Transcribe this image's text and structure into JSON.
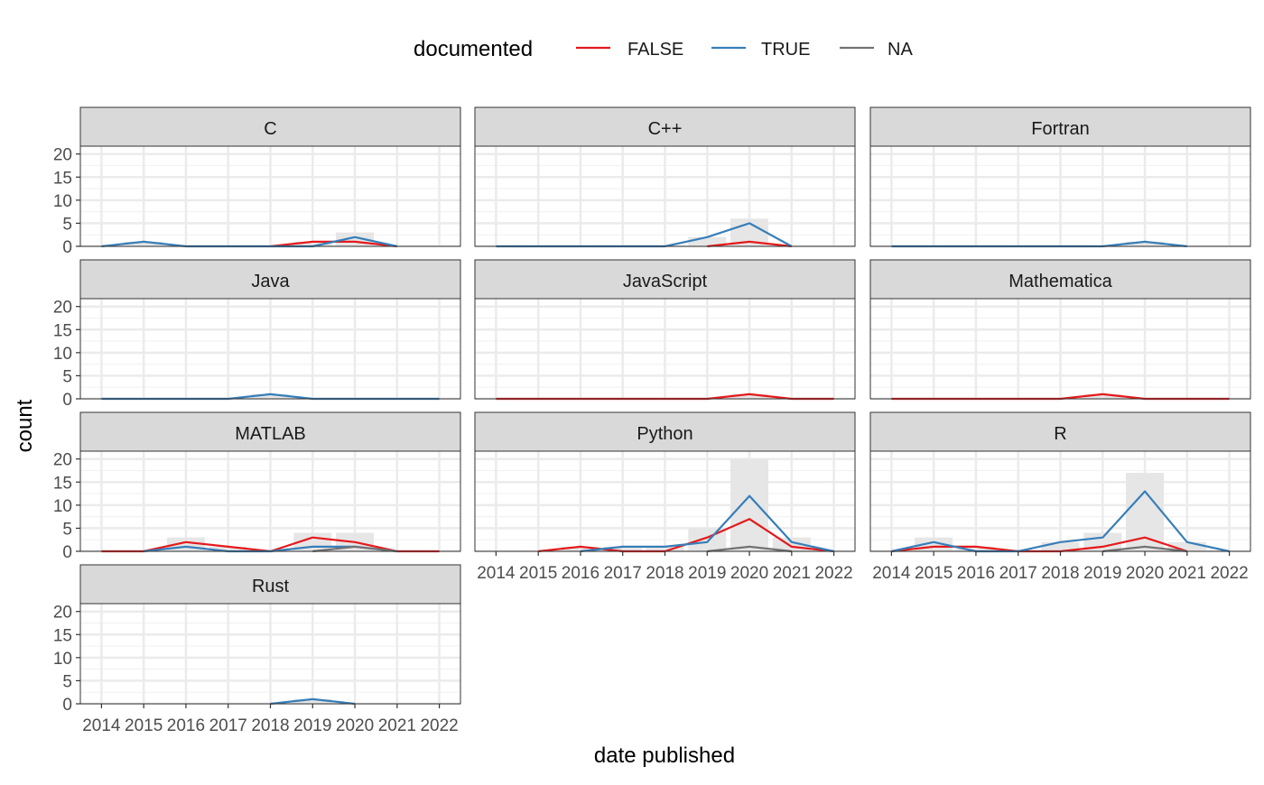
{
  "chart_data": {
    "type": "line",
    "xlabel": "date published",
    "ylabel": "count",
    "ylim": [
      0,
      20
    ],
    "yticks": [
      0,
      5,
      10,
      15,
      20
    ],
    "x": [
      2014,
      2015,
      2016,
      2017,
      2018,
      2019,
      2020,
      2021,
      2022
    ],
    "xtick_labels": [
      "2014",
      "2015",
      "2016",
      "2017",
      "2018",
      "2019",
      "2020",
      "2021",
      "2022"
    ],
    "grid": true,
    "legend": {
      "title": "documented",
      "position": "top",
      "entries": [
        {
          "label": "FALSE",
          "color": "#e41a1c"
        },
        {
          "label": "TRUE",
          "color": "#377eb8"
        },
        {
          "label": "NA",
          "color": "#737373"
        }
      ]
    },
    "background_bar_color": "#e6e6e6",
    "panels": [
      {
        "name": "C",
        "totals": {
          "x": [
            2015,
            2019,
            2020
          ],
          "values": [
            1,
            1,
            3
          ]
        },
        "series": [
          {
            "name": "FALSE",
            "x": [
              2018,
              2019,
              2020,
              2021
            ],
            "values": [
              0,
              1,
              1,
              0
            ]
          },
          {
            "name": "TRUE",
            "x": [
              2014,
              2015,
              2016,
              2017,
              2018,
              2019,
              2020,
              2021
            ],
            "values": [
              0,
              1,
              0,
              0,
              0,
              0,
              2,
              0
            ]
          }
        ]
      },
      {
        "name": "C++",
        "totals": {
          "x": [
            2019,
            2020
          ],
          "values": [
            2,
            6
          ]
        },
        "series": [
          {
            "name": "FALSE",
            "x": [
              2019,
              2020,
              2021
            ],
            "values": [
              0,
              1,
              0
            ]
          },
          {
            "name": "TRUE",
            "x": [
              2014,
              2015,
              2016,
              2017,
              2018,
              2019,
              2020,
              2021
            ],
            "values": [
              0,
              0,
              0,
              0,
              0,
              2,
              5,
              0
            ]
          }
        ]
      },
      {
        "name": "Fortran",
        "totals": {
          "x": [
            2020
          ],
          "values": [
            1
          ]
        },
        "series": [
          {
            "name": "TRUE",
            "x": [
              2014,
              2015,
              2016,
              2017,
              2018,
              2019,
              2020,
              2021
            ],
            "values": [
              0,
              0,
              0,
              0,
              0,
              0,
              1,
              0
            ]
          }
        ]
      },
      {
        "name": "Java",
        "totals": {
          "x": [
            2018
          ],
          "values": [
            1
          ]
        },
        "series": [
          {
            "name": "TRUE",
            "x": [
              2014,
              2015,
              2016,
              2017,
              2018,
              2019,
              2020,
              2021,
              2022
            ],
            "values": [
              0,
              0,
              0,
              0,
              1,
              0,
              0,
              0,
              0
            ]
          }
        ]
      },
      {
        "name": "JavaScript",
        "totals": {
          "x": [
            2020
          ],
          "values": [
            1
          ]
        },
        "series": [
          {
            "name": "FALSE",
            "x": [
              2014,
              2015,
              2016,
              2017,
              2018,
              2019,
              2020,
              2021,
              2022
            ],
            "values": [
              0,
              0,
              0,
              0,
              0,
              0,
              1,
              0,
              0
            ]
          }
        ]
      },
      {
        "name": "Mathematica",
        "totals": {
          "x": [
            2019
          ],
          "values": [
            1
          ]
        },
        "series": [
          {
            "name": "FALSE",
            "x": [
              2014,
              2015,
              2016,
              2017,
              2018,
              2019,
              2020,
              2021,
              2022
            ],
            "values": [
              0,
              0,
              0,
              0,
              0,
              1,
              0,
              0,
              0
            ]
          }
        ]
      },
      {
        "name": "MATLAB",
        "totals": {
          "x": [
            2016,
            2017,
            2019,
            2020
          ],
          "values": [
            3,
            1,
            4,
            4
          ]
        },
        "series": [
          {
            "name": "FALSE",
            "x": [
              2014,
              2015,
              2016,
              2017,
              2018,
              2019,
              2020,
              2021,
              2022
            ],
            "values": [
              0,
              0,
              2,
              1,
              0,
              3,
              2,
              0,
              0
            ]
          },
          {
            "name": "TRUE",
            "x": [
              2015,
              2016,
              2017,
              2018,
              2019,
              2020,
              2021
            ],
            "values": [
              0,
              1,
              0,
              0,
              1,
              1,
              0
            ]
          },
          {
            "name": "NA",
            "x": [
              2019,
              2020,
              2021
            ],
            "values": [
              0,
              1,
              0
            ]
          }
        ]
      },
      {
        "name": "Python",
        "totals": {
          "x": [
            2016,
            2017,
            2018,
            2019,
            2020,
            2021
          ],
          "values": [
            1,
            1,
            1,
            5,
            20,
            3
          ]
        },
        "series": [
          {
            "name": "FALSE",
            "x": [
              2015,
              2016,
              2017,
              2018,
              2019,
              2020,
              2021,
              2022
            ],
            "values": [
              0,
              1,
              0,
              0,
              3,
              7,
              1,
              0
            ]
          },
          {
            "name": "TRUE",
            "x": [
              2016,
              2017,
              2018,
              2019,
              2020,
              2021,
              2022
            ],
            "values": [
              0,
              1,
              1,
              2,
              12,
              2,
              0
            ]
          },
          {
            "name": "NA",
            "x": [
              2019,
              2020,
              2021
            ],
            "values": [
              0,
              1,
              0
            ]
          }
        ]
      },
      {
        "name": "R",
        "totals": {
          "x": [
            2015,
            2016,
            2018,
            2019,
            2020,
            2021
          ],
          "values": [
            3,
            1,
            2,
            4,
            17,
            2
          ]
        },
        "series": [
          {
            "name": "FALSE",
            "x": [
              2014,
              2015,
              2016,
              2017,
              2018,
              2019,
              2020,
              2021
            ],
            "values": [
              0,
              1,
              1,
              0,
              0,
              1,
              3,
              0
            ]
          },
          {
            "name": "TRUE",
            "x": [
              2014,
              2015,
              2016,
              2017,
              2018,
              2019,
              2020,
              2021,
              2022
            ],
            "values": [
              0,
              2,
              0,
              0,
              2,
              3,
              13,
              2,
              0
            ]
          },
          {
            "name": "NA",
            "x": [
              2019,
              2020,
              2021
            ],
            "values": [
              0,
              1,
              0
            ]
          }
        ]
      },
      {
        "name": "Rust",
        "totals": {
          "x": [
            2019
          ],
          "values": [
            1
          ]
        },
        "series": [
          {
            "name": "TRUE",
            "x": [
              2018,
              2019,
              2020
            ],
            "values": [
              0,
              1,
              0
            ]
          }
        ]
      }
    ]
  }
}
